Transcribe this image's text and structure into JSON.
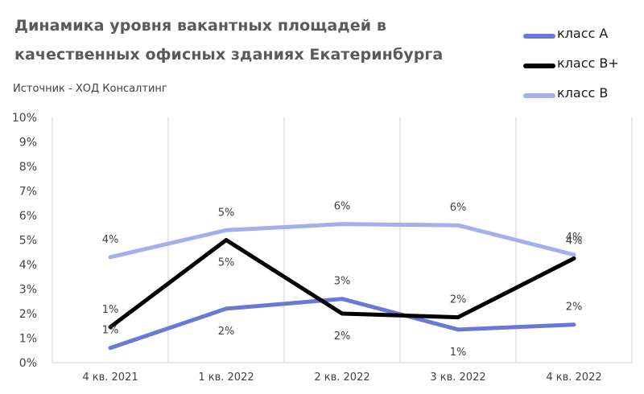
{
  "chart_data": {
    "type": "line",
    "title": "Динамика уровня вакантных площадей в  качественных офисных зданиях Екатеринбурга",
    "subtitle": "Источник - ХОД Консалтинг",
    "categories": [
      "4 кв. 2021",
      "1 кв. 2022",
      "2 кв. 2022",
      "3 кв. 2022",
      "4 кв. 2022"
    ],
    "ylim": [
      0,
      10
    ],
    "y_ticks": [
      "0%",
      "1%",
      "2%",
      "3%",
      "4%",
      "5%",
      "6%",
      "7%",
      "8%",
      "9%",
      "10%"
    ],
    "grid": "vertical",
    "legend": "top-right",
    "series": [
      {
        "name": "класс А",
        "color": "#6b79d6",
        "values": [
          0.6,
          2.2,
          2.6,
          1.35,
          1.55
        ],
        "labels": [
          "1%",
          "2%",
          "3%",
          "1%",
          "2%"
        ],
        "label_side": [
          "above",
          "below",
          "above",
          "below",
          "above"
        ]
      },
      {
        "name": "класс В+",
        "color": "#000000",
        "values": [
          1.45,
          5.0,
          2.0,
          1.85,
          4.25
        ],
        "labels": [
          "1%",
          "5%",
          "2%",
          "2%",
          "4%"
        ],
        "label_side": [
          "above",
          "below",
          "below",
          "above",
          "above"
        ]
      },
      {
        "name": "класс В",
        "color": "#a3b0ec",
        "values": [
          4.3,
          5.4,
          5.65,
          5.6,
          4.4
        ],
        "labels": [
          "4%",
          "5%",
          "6%",
          "6%",
          "4%"
        ],
        "label_side": [
          "above",
          "above",
          "above",
          "above",
          "above"
        ]
      }
    ]
  }
}
